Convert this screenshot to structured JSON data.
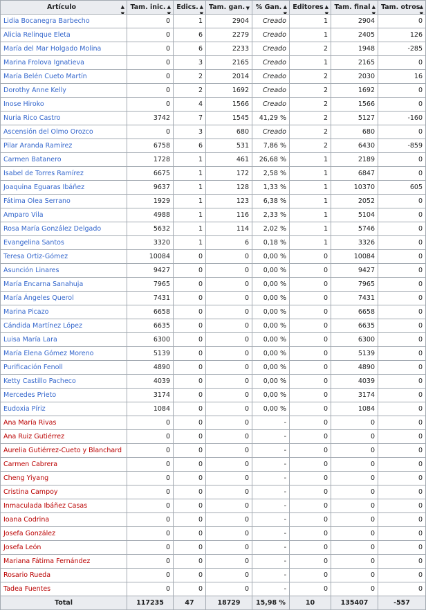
{
  "columns": [
    "Artículo",
    "Tam. inic.",
    "Edics.",
    "Tam. gan.",
    "% Gan.",
    "Editores",
    "Tam. final",
    "Tam. otros"
  ],
  "sort_icons": [
    "sort-both",
    "sort-both",
    "sort-both",
    "sort-desc",
    "sort-both",
    "sort-both",
    "sort-both",
    "sort-both"
  ],
  "link_colors": {
    "existing": "#3366cc",
    "missing": "#ba0000"
  },
  "rows": [
    {
      "article": "Lidia Bocanegra Barbecho",
      "exists": true,
      "tam_inic": "0",
      "edics": "1",
      "tam_gan": "2904",
      "pct_gan": "Creado",
      "editores": "1",
      "tam_final": "2904",
      "tam_otros": "0"
    },
    {
      "article": "Alicia Relinque Eleta",
      "exists": true,
      "tam_inic": "0",
      "edics": "6",
      "tam_gan": "2279",
      "pct_gan": "Creado",
      "editores": "1",
      "tam_final": "2405",
      "tam_otros": "126"
    },
    {
      "article": "María del Mar Holgado Molina",
      "exists": true,
      "tam_inic": "0",
      "edics": "6",
      "tam_gan": "2233",
      "pct_gan": "Creado",
      "editores": "2",
      "tam_final": "1948",
      "tam_otros": "-285"
    },
    {
      "article": "Marina Frolova Ignatieva",
      "exists": true,
      "tam_inic": "0",
      "edics": "3",
      "tam_gan": "2165",
      "pct_gan": "Creado",
      "editores": "1",
      "tam_final": "2165",
      "tam_otros": "0"
    },
    {
      "article": "María Belén Cueto Martín",
      "exists": true,
      "tam_inic": "0",
      "edics": "2",
      "tam_gan": "2014",
      "pct_gan": "Creado",
      "editores": "2",
      "tam_final": "2030",
      "tam_otros": "16"
    },
    {
      "article": "Dorothy Anne Kelly",
      "exists": true,
      "tam_inic": "0",
      "edics": "2",
      "tam_gan": "1692",
      "pct_gan": "Creado",
      "editores": "2",
      "tam_final": "1692",
      "tam_otros": "0"
    },
    {
      "article": "Inose Hiroko",
      "exists": true,
      "tam_inic": "0",
      "edics": "4",
      "tam_gan": "1566",
      "pct_gan": "Creado",
      "editores": "2",
      "tam_final": "1566",
      "tam_otros": "0"
    },
    {
      "article": "Nuria Rico Castro",
      "exists": true,
      "tam_inic": "3742",
      "edics": "7",
      "tam_gan": "1545",
      "pct_gan": "41,29 %",
      "editores": "2",
      "tam_final": "5127",
      "tam_otros": "-160"
    },
    {
      "article": "Ascensión del Olmo Orozco",
      "exists": true,
      "tam_inic": "0",
      "edics": "3",
      "tam_gan": "680",
      "pct_gan": "Creado",
      "editores": "2",
      "tam_final": "680",
      "tam_otros": "0"
    },
    {
      "article": "Pilar Aranda Ramírez",
      "exists": true,
      "tam_inic": "6758",
      "edics": "6",
      "tam_gan": "531",
      "pct_gan": "7,86 %",
      "editores": "2",
      "tam_final": "6430",
      "tam_otros": "-859"
    },
    {
      "article": "Carmen Batanero",
      "exists": true,
      "tam_inic": "1728",
      "edics": "1",
      "tam_gan": "461",
      "pct_gan": "26,68 %",
      "editores": "1",
      "tam_final": "2189",
      "tam_otros": "0"
    },
    {
      "article": "Isabel de Torres Ramírez",
      "exists": true,
      "tam_inic": "6675",
      "edics": "1",
      "tam_gan": "172",
      "pct_gan": "2,58 %",
      "editores": "1",
      "tam_final": "6847",
      "tam_otros": "0"
    },
    {
      "article": "Joaquina Eguaras Ibáñez",
      "exists": true,
      "tam_inic": "9637",
      "edics": "1",
      "tam_gan": "128",
      "pct_gan": "1,33 %",
      "editores": "1",
      "tam_final": "10370",
      "tam_otros": "605"
    },
    {
      "article": "Fátima Olea Serrano",
      "exists": true,
      "tam_inic": "1929",
      "edics": "1",
      "tam_gan": "123",
      "pct_gan": "6,38 %",
      "editores": "1",
      "tam_final": "2052",
      "tam_otros": "0"
    },
    {
      "article": "Amparo Vila",
      "exists": true,
      "tam_inic": "4988",
      "edics": "1",
      "tam_gan": "116",
      "pct_gan": "2,33 %",
      "editores": "1",
      "tam_final": "5104",
      "tam_otros": "0"
    },
    {
      "article": "Rosa María González Delgado",
      "exists": true,
      "tam_inic": "5632",
      "edics": "1",
      "tam_gan": "114",
      "pct_gan": "2,02 %",
      "editores": "1",
      "tam_final": "5746",
      "tam_otros": "0"
    },
    {
      "article": "Evangelina Santos",
      "exists": true,
      "tam_inic": "3320",
      "edics": "1",
      "tam_gan": "6",
      "pct_gan": "0,18 %",
      "editores": "1",
      "tam_final": "3326",
      "tam_otros": "0"
    },
    {
      "article": "Teresa Ortiz-Gómez",
      "exists": true,
      "tam_inic": "10084",
      "edics": "0",
      "tam_gan": "0",
      "pct_gan": "0,00 %",
      "editores": "0",
      "tam_final": "10084",
      "tam_otros": "0"
    },
    {
      "article": "Asunción Linares",
      "exists": true,
      "tam_inic": "9427",
      "edics": "0",
      "tam_gan": "0",
      "pct_gan": "0,00 %",
      "editores": "0",
      "tam_final": "9427",
      "tam_otros": "0"
    },
    {
      "article": "María Encarna Sanahuja",
      "exists": true,
      "tam_inic": "7965",
      "edics": "0",
      "tam_gan": "0",
      "pct_gan": "0,00 %",
      "editores": "0",
      "tam_final": "7965",
      "tam_otros": "0"
    },
    {
      "article": "María Ángeles Querol",
      "exists": true,
      "tam_inic": "7431",
      "edics": "0",
      "tam_gan": "0",
      "pct_gan": "0,00 %",
      "editores": "0",
      "tam_final": "7431",
      "tam_otros": "0"
    },
    {
      "article": "Marina Picazo",
      "exists": true,
      "tam_inic": "6658",
      "edics": "0",
      "tam_gan": "0",
      "pct_gan": "0,00 %",
      "editores": "0",
      "tam_final": "6658",
      "tam_otros": "0"
    },
    {
      "article": "Cándida Martínez López",
      "exists": true,
      "tam_inic": "6635",
      "edics": "0",
      "tam_gan": "0",
      "pct_gan": "0,00 %",
      "editores": "0",
      "tam_final": "6635",
      "tam_otros": "0"
    },
    {
      "article": "Luisa María Lara",
      "exists": true,
      "tam_inic": "6300",
      "edics": "0",
      "tam_gan": "0",
      "pct_gan": "0,00 %",
      "editores": "0",
      "tam_final": "6300",
      "tam_otros": "0"
    },
    {
      "article": "María Elena Gómez Moreno",
      "exists": true,
      "tam_inic": "5139",
      "edics": "0",
      "tam_gan": "0",
      "pct_gan": "0,00 %",
      "editores": "0",
      "tam_final": "5139",
      "tam_otros": "0"
    },
    {
      "article": "Purificación Fenoll",
      "exists": true,
      "tam_inic": "4890",
      "edics": "0",
      "tam_gan": "0",
      "pct_gan": "0,00 %",
      "editores": "0",
      "tam_final": "4890",
      "tam_otros": "0"
    },
    {
      "article": "Ketty Castillo Pacheco",
      "exists": true,
      "tam_inic": "4039",
      "edics": "0",
      "tam_gan": "0",
      "pct_gan": "0,00 %",
      "editores": "0",
      "tam_final": "4039",
      "tam_otros": "0"
    },
    {
      "article": "Mercedes Prieto",
      "exists": true,
      "tam_inic": "3174",
      "edics": "0",
      "tam_gan": "0",
      "pct_gan": "0,00 %",
      "editores": "0",
      "tam_final": "3174",
      "tam_otros": "0"
    },
    {
      "article": "Eudoxia Píriz",
      "exists": true,
      "tam_inic": "1084",
      "edics": "0",
      "tam_gan": "0",
      "pct_gan": "0,00 %",
      "editores": "0",
      "tam_final": "1084",
      "tam_otros": "0"
    },
    {
      "article": "Ana María Rivas",
      "exists": false,
      "tam_inic": "0",
      "edics": "0",
      "tam_gan": "0",
      "pct_gan": "-",
      "editores": "0",
      "tam_final": "0",
      "tam_otros": "0"
    },
    {
      "article": "Ana Ruiz Gutiérrez",
      "exists": false,
      "tam_inic": "0",
      "edics": "0",
      "tam_gan": "0",
      "pct_gan": "-",
      "editores": "0",
      "tam_final": "0",
      "tam_otros": "0"
    },
    {
      "article": "Aurelia Gutiérrez-Cueto y Blanchard",
      "exists": false,
      "tam_inic": "0",
      "edics": "0",
      "tam_gan": "0",
      "pct_gan": "-",
      "editores": "0",
      "tam_final": "0",
      "tam_otros": "0"
    },
    {
      "article": "Carmen Cabrera",
      "exists": false,
      "tam_inic": "0",
      "edics": "0",
      "tam_gan": "0",
      "pct_gan": "-",
      "editores": "0",
      "tam_final": "0",
      "tam_otros": "0"
    },
    {
      "article": "Cheng Yiyang",
      "exists": false,
      "tam_inic": "0",
      "edics": "0",
      "tam_gan": "0",
      "pct_gan": "-",
      "editores": "0",
      "tam_final": "0",
      "tam_otros": "0"
    },
    {
      "article": "Cristina Campoy",
      "exists": false,
      "tam_inic": "0",
      "edics": "0",
      "tam_gan": "0",
      "pct_gan": "-",
      "editores": "0",
      "tam_final": "0",
      "tam_otros": "0"
    },
    {
      "article": "Inmaculada Ibáñez Casas",
      "exists": false,
      "tam_inic": "0",
      "edics": "0",
      "tam_gan": "0",
      "pct_gan": "-",
      "editores": "0",
      "tam_final": "0",
      "tam_otros": "0"
    },
    {
      "article": "Ioana Codrina",
      "exists": false,
      "tam_inic": "0",
      "edics": "0",
      "tam_gan": "0",
      "pct_gan": "-",
      "editores": "0",
      "tam_final": "0",
      "tam_otros": "0"
    },
    {
      "article": "Josefa González",
      "exists": false,
      "tam_inic": "0",
      "edics": "0",
      "tam_gan": "0",
      "pct_gan": "-",
      "editores": "0",
      "tam_final": "0",
      "tam_otros": "0"
    },
    {
      "article": "Josefa León",
      "exists": false,
      "tam_inic": "0",
      "edics": "0",
      "tam_gan": "0",
      "pct_gan": "-",
      "editores": "0",
      "tam_final": "0",
      "tam_otros": "0"
    },
    {
      "article": "Mariana Fátima Fernández",
      "exists": false,
      "tam_inic": "0",
      "edics": "0",
      "tam_gan": "0",
      "pct_gan": "-",
      "editores": "0",
      "tam_final": "0",
      "tam_otros": "0"
    },
    {
      "article": "Rosario Rueda",
      "exists": false,
      "tam_inic": "0",
      "edics": "0",
      "tam_gan": "0",
      "pct_gan": "-",
      "editores": "0",
      "tam_final": "0",
      "tam_otros": "0"
    },
    {
      "article": "Tadea Fuentes",
      "exists": false,
      "tam_inic": "0",
      "edics": "0",
      "tam_gan": "0",
      "pct_gan": "-",
      "editores": "0",
      "tam_final": "0",
      "tam_otros": "0"
    }
  ],
  "totals": {
    "label": "Total",
    "tam_inic": "117235",
    "edics": "47",
    "tam_gan": "18729",
    "pct_gan": "15,98 %",
    "editores": "10",
    "tam_final": "135407",
    "tam_otros": "-557"
  }
}
